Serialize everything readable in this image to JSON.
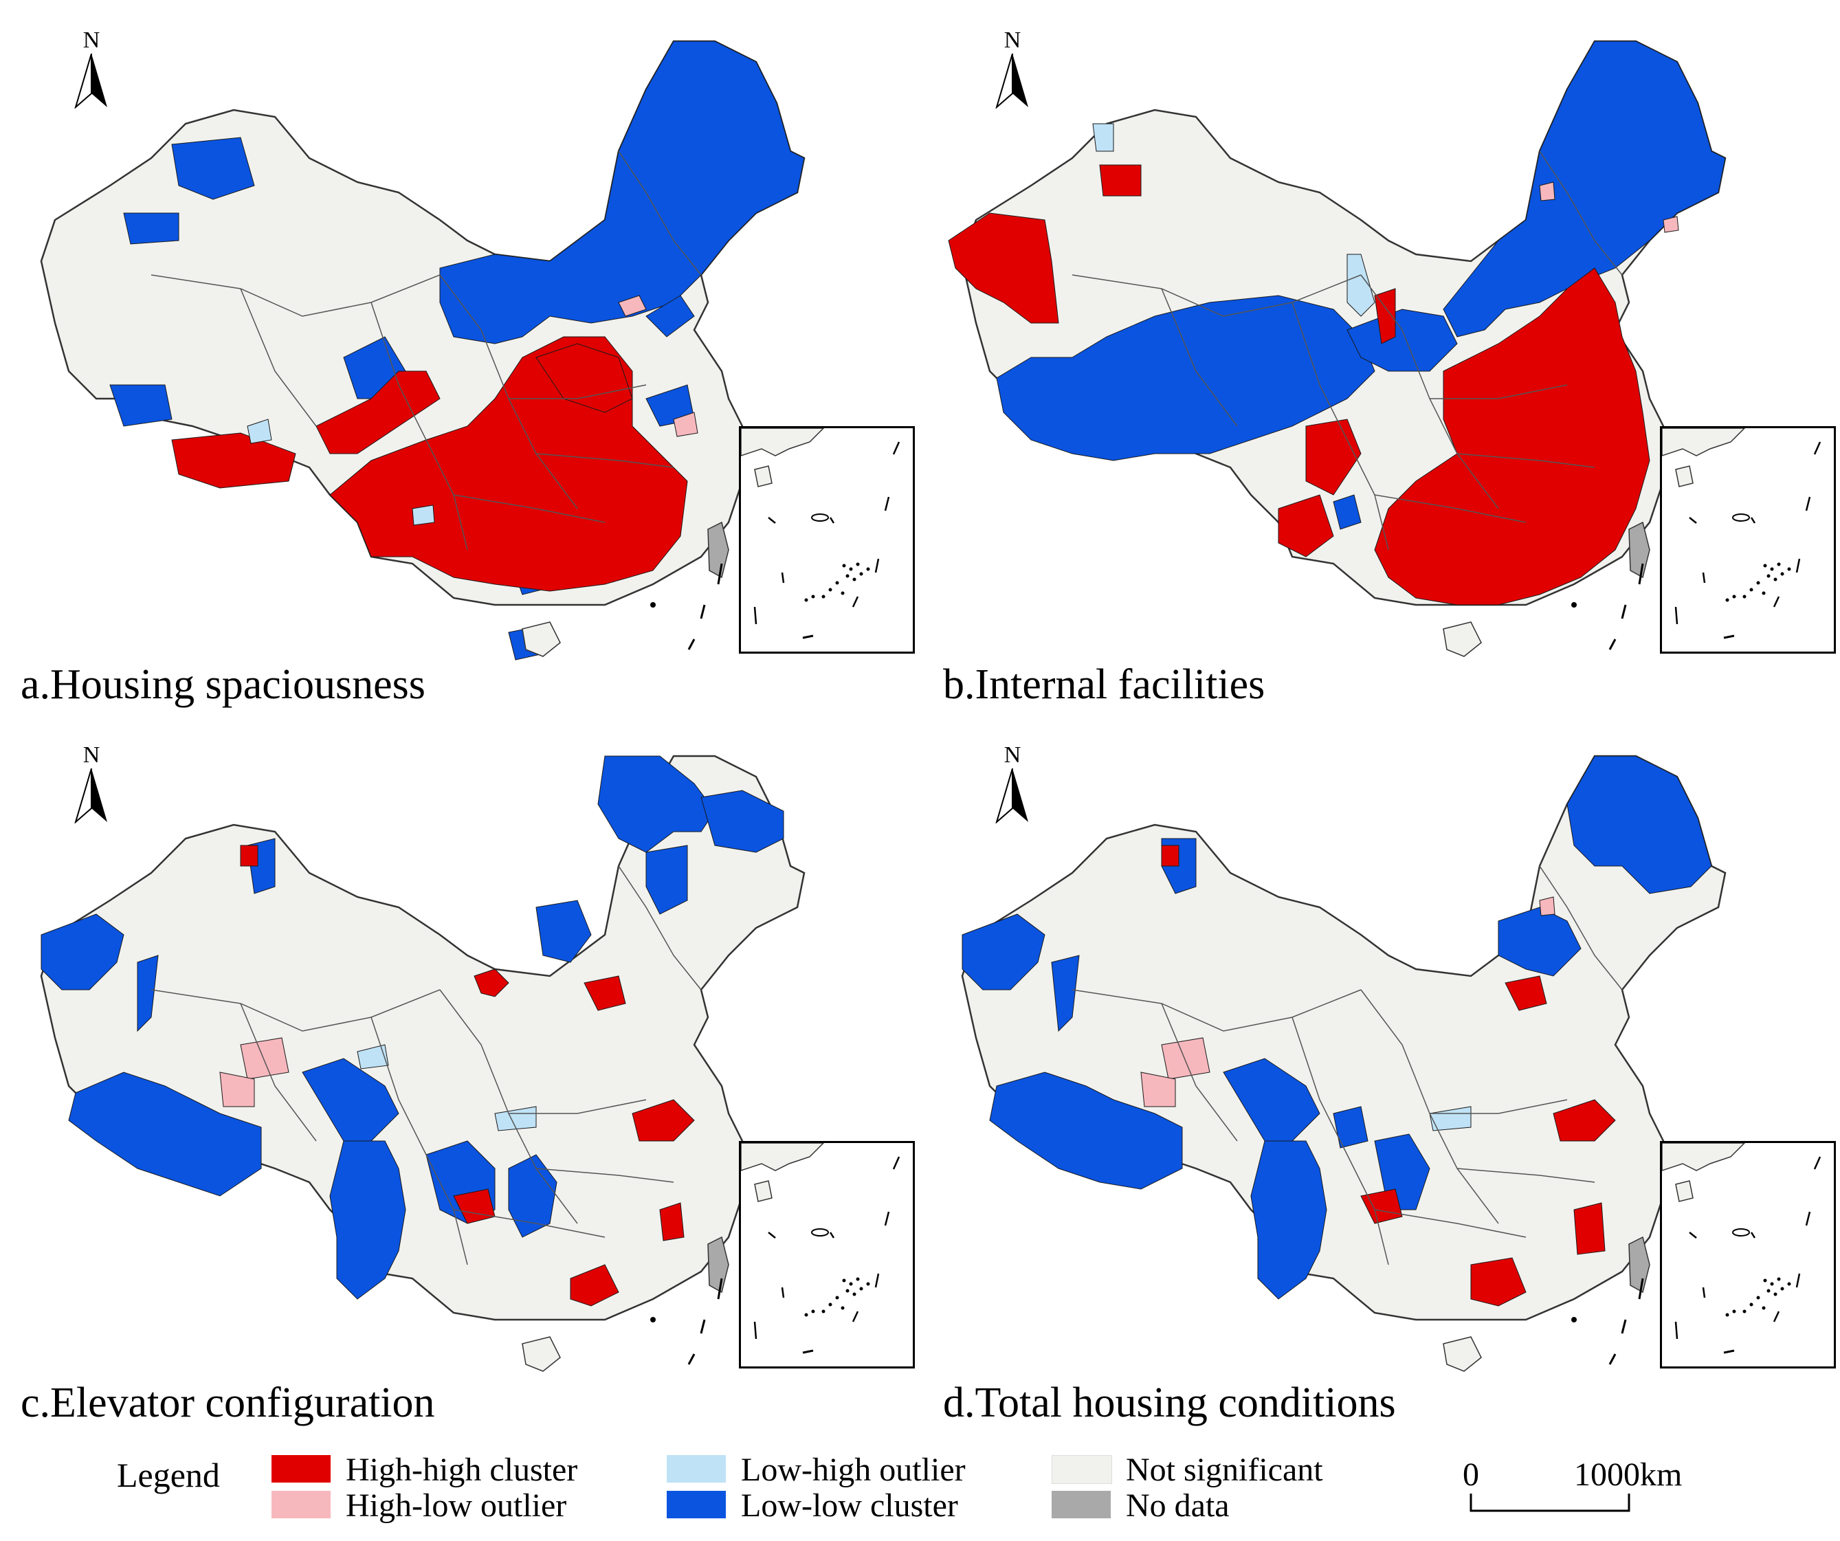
{
  "legend": {
    "title": "Legend",
    "items": [
      {
        "label": "High-high cluster",
        "color": "#e00000"
      },
      {
        "label": "High-low outlier",
        "color": "#f7b8bd"
      },
      {
        "label": "Low-high outlier",
        "color": "#bfe2f6"
      },
      {
        "label": "Low-low cluster",
        "color": "#0a54e0"
      },
      {
        "label": "Not significant",
        "color": "#f1f1ee"
      },
      {
        "label": "No data",
        "color": "#a9a9a9"
      }
    ]
  },
  "north_label": "N",
  "scale_bar": {
    "start": "0",
    "end": "1000km"
  },
  "panels": [
    {
      "caption": "a.Housing spaciousness",
      "dominant": [
        "High-high cluster in south and central China",
        "Low-low cluster in northeast"
      ]
    },
    {
      "caption": "b.Internal facilities",
      "dominant": [
        "High-high cluster in east and south China",
        "Low-low cluster in west and northeast"
      ]
    },
    {
      "caption": "c.Elevator configuration",
      "dominant": [
        "Low-low cluster in west and northeast"
      ]
    },
    {
      "caption": "d.Total housing conditions",
      "dominant": [
        "Low-low cluster in west and northeast"
      ]
    }
  ]
}
